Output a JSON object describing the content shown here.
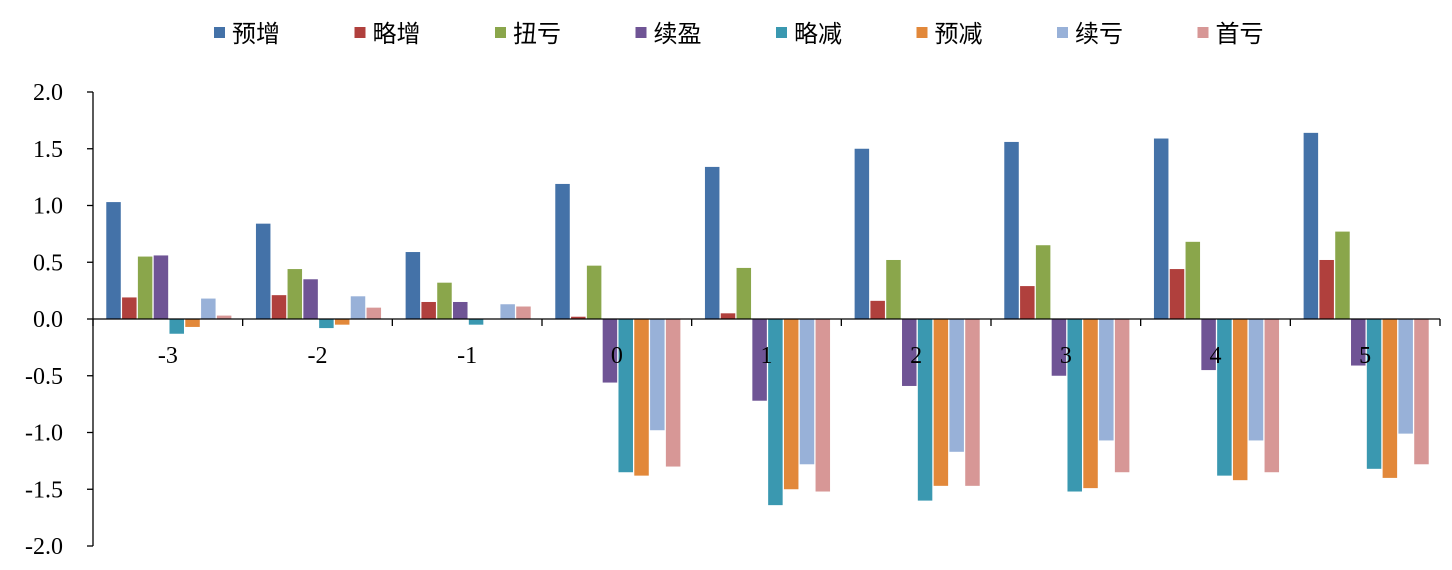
{
  "chart_data": {
    "type": "bar",
    "categories": [
      "-3",
      "-2",
      "-1",
      "0",
      "1",
      "2",
      "3",
      "4",
      "5"
    ],
    "ylim": [
      -2.0,
      2.0
    ],
    "yticks": [
      "2.0",
      "1.5",
      "1.0",
      "0.5",
      "0.0",
      "-0.5",
      "-1.0",
      "-1.5",
      "-2.0"
    ],
    "grid": false,
    "legend_position": "top-center",
    "series": [
      {
        "name": "预增",
        "color": "#4472A8",
        "values": [
          1.03,
          0.84,
          0.59,
          1.19,
          1.34,
          1.5,
          1.56,
          1.59,
          1.64
        ]
      },
      {
        "name": "略增",
        "color": "#B0403D",
        "values": [
          0.19,
          0.21,
          0.15,
          0.02,
          0.05,
          0.16,
          0.29,
          0.44,
          0.52
        ]
      },
      {
        "name": "扭亏",
        "color": "#8AA64B",
        "values": [
          0.55,
          0.44,
          0.32,
          0.47,
          0.45,
          0.52,
          0.65,
          0.68,
          0.77
        ]
      },
      {
        "name": "续盈",
        "color": "#6F5495",
        "values": [
          0.56,
          0.35,
          0.15,
          -0.56,
          -0.72,
          -0.59,
          -0.5,
          -0.45,
          -0.41
        ]
      },
      {
        "name": "略减",
        "color": "#3A98B0",
        "values": [
          -0.13,
          -0.08,
          -0.05,
          -1.35,
          -1.64,
          -1.6,
          -1.52,
          -1.38,
          -1.32
        ]
      },
      {
        "name": "预减",
        "color": "#E2883A",
        "values": [
          -0.07,
          -0.05,
          0.0,
          -1.38,
          -1.5,
          -1.47,
          -1.49,
          -1.42,
          -1.4
        ]
      },
      {
        "name": "续亏",
        "color": "#98B1D8",
        "values": [
          0.18,
          0.2,
          0.13,
          -0.98,
          -1.28,
          -1.17,
          -1.07,
          -1.07,
          -1.01
        ]
      },
      {
        "name": "首亏",
        "color": "#D79796",
        "values": [
          0.03,
          0.1,
          0.11,
          -1.3,
          -1.52,
          -1.47,
          -1.35,
          -1.35,
          -1.28
        ]
      }
    ]
  }
}
